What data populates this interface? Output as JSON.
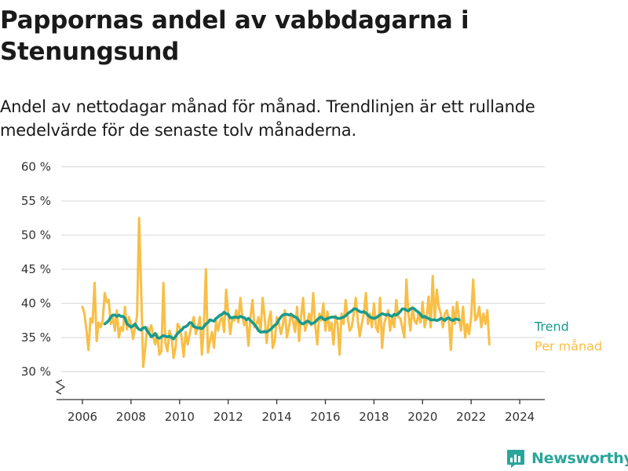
{
  "header": {
    "title": "Pappornas andel av vabbdagarna i Stenungsund",
    "subtitle": "Andel av nettodagar månad för månad. Trendlinjen är ett rullande medelvärde för de senaste tolv månaderna."
  },
  "brand": {
    "name": "Newsworthy",
    "icon": "newsworthy-logo-icon",
    "color": "#2aa59a"
  },
  "chart_data": {
    "type": "line",
    "title": "",
    "xlabel": "",
    "ylabel": "",
    "ylim": [
      30,
      60
    ],
    "xlim": [
      2005.5,
      2024.75
    ],
    "y_ticks": [
      30,
      35,
      40,
      45,
      50,
      55,
      60
    ],
    "y_tick_labels": [
      "30 %",
      "35 %",
      "40 %",
      "45 %",
      "50 %",
      "55 %",
      "60 %"
    ],
    "x_ticks": [
      2006,
      2008,
      2010,
      2012,
      2014,
      2016,
      2018,
      2020,
      2022,
      2024
    ],
    "x_tick_labels": [
      "2006",
      "2008",
      "2010",
      "2012",
      "2014",
      "2016",
      "2018",
      "2020",
      "2022",
      "2024"
    ],
    "grid": "horizontal",
    "y_axis_broken": true,
    "series": [
      {
        "name": "Per månad",
        "color": "#f8be46",
        "start": "2006-01",
        "values": [
          39.5,
          38.5,
          36.0,
          33.2,
          37.8,
          37.2,
          43.0,
          34.5,
          37.2,
          36.5,
          37.5,
          41.5,
          40.2,
          40.5,
          37.0,
          38.0,
          36.0,
          39.0,
          35.0,
          36.5,
          36.0,
          39.5,
          36.2,
          38.0,
          37.0,
          34.8,
          36.5,
          38.2,
          52.5,
          42.0,
          30.7,
          33.5,
          36.5,
          35.8,
          36.8,
          35.0,
          34.0,
          35.5,
          32.5,
          33.0,
          43.0,
          34.2,
          33.0,
          36.0,
          35.2,
          32.0,
          33.5,
          37.0,
          36.5,
          35.0,
          32.2,
          35.8,
          34.0,
          35.5,
          37.0,
          38.0,
          35.5,
          36.5,
          38.0,
          32.5,
          37.0,
          45.0,
          32.8,
          34.5,
          35.8,
          33.5,
          37.5,
          36.0,
          37.5,
          38.0,
          35.8,
          42.0,
          38.5,
          35.5,
          37.8,
          37.5,
          39.0,
          37.2,
          40.8,
          38.0,
          36.8,
          37.5,
          33.8,
          38.0,
          40.5,
          36.5,
          37.0,
          38.0,
          35.8,
          40.8,
          38.0,
          34.2,
          37.5,
          38.8,
          33.5,
          34.5,
          38.0,
          37.2,
          35.5,
          36.8,
          39.0,
          35.0,
          36.5,
          38.5,
          37.5,
          35.8,
          39.5,
          34.5,
          38.2,
          40.8,
          36.0,
          37.2,
          38.5,
          36.8,
          41.5,
          36.8,
          34.0,
          38.5,
          37.5,
          40.0,
          36.0,
          38.8,
          36.0,
          37.2,
          34.0,
          38.2,
          37.0,
          32.5,
          38.5,
          37.0,
          40.5,
          38.0,
          36.0,
          36.5,
          38.5,
          40.8,
          37.5,
          35.2,
          37.0,
          38.5,
          41.5,
          37.0,
          38.5,
          36.5,
          40.0,
          36.5,
          35.8,
          40.8,
          33.5,
          37.0,
          38.0,
          39.0,
          36.0,
          38.0,
          36.5,
          40.5,
          38.0,
          37.8,
          36.5,
          35.0,
          43.5,
          38.5,
          36.0,
          39.5,
          37.5,
          37.0,
          38.5,
          37.2,
          40.2,
          36.5,
          38.0,
          41.0,
          36.5,
          44.0,
          37.5,
          42.0,
          39.5,
          38.5,
          36.5,
          38.5,
          39.0,
          37.5,
          33.2,
          39.5,
          37.0,
          40.2,
          38.0,
          36.0,
          39.5,
          35.0,
          37.0,
          35.5,
          38.0,
          43.5,
          37.5,
          38.0,
          39.5,
          36.5,
          38.5,
          37.0,
          39.0,
          34.0
        ]
      },
      {
        "name": "Trend",
        "color": "#1a9a8c",
        "start": "2006-12",
        "values": [
          37.0,
          37.2,
          37.5,
          38.0,
          38.3,
          38.3,
          38.1,
          38.3,
          38.1,
          38.1,
          37.8,
          37.0,
          36.8,
          36.5,
          36.7,
          37.0,
          36.5,
          36.2,
          36.1,
          36.4,
          36.5,
          36.0,
          35.6,
          35.1,
          35.3,
          35.6,
          35.0,
          34.9,
          35.1,
          35.3,
          35.2,
          35.1,
          35.2,
          35.0,
          34.8,
          35.2,
          35.6,
          35.9,
          36.1,
          36.5,
          36.6,
          36.8,
          37.2,
          37.1,
          36.6,
          36.5,
          36.4,
          36.4,
          36.3,
          36.6,
          37.0,
          37.2,
          37.6,
          37.5,
          37.4,
          37.8,
          38.0,
          38.3,
          38.4,
          38.7,
          38.5,
          38.4,
          37.9,
          37.9,
          38.0,
          38.0,
          37.9,
          38.1,
          38.0,
          37.9,
          37.6,
          37.8,
          37.5,
          37.2,
          36.9,
          36.5,
          36.0,
          35.8,
          35.8,
          35.9,
          35.8,
          36.0,
          36.2,
          36.5,
          36.8,
          37.0,
          37.6,
          38.0,
          38.3,
          38.4,
          38.4,
          38.3,
          38.4,
          38.2,
          38.0,
          37.9,
          37.4,
          37.1,
          37.0,
          37.2,
          37.4,
          37.3,
          37.0,
          37.1,
          37.3,
          37.6,
          37.9,
          38.0,
          37.7,
          37.6,
          37.8,
          37.9,
          38.0,
          38.0,
          38.0,
          37.8,
          37.8,
          37.9,
          38.0,
          38.2,
          38.5,
          38.7,
          38.9,
          39.2,
          39.2,
          39.0,
          38.8,
          38.7,
          38.8,
          38.6,
          38.3,
          38.0,
          37.9,
          37.8,
          37.9,
          38.1,
          38.3,
          38.5,
          38.4,
          38.3,
          38.4,
          38.2,
          38.1,
          38.4,
          38.3,
          38.5,
          38.8,
          39.2,
          39.2,
          39.0,
          38.9,
          39.2,
          39.3,
          39.2,
          38.9,
          38.7,
          38.4,
          38.0,
          38.1,
          37.9,
          37.8,
          37.6,
          37.6,
          37.6,
          37.5,
          37.6,
          37.8,
          37.7,
          37.5,
          37.8,
          37.9,
          37.6,
          37.5,
          37.7,
          37.7,
          37.6
        ]
      }
    ],
    "label_positions": "right of line end"
  }
}
